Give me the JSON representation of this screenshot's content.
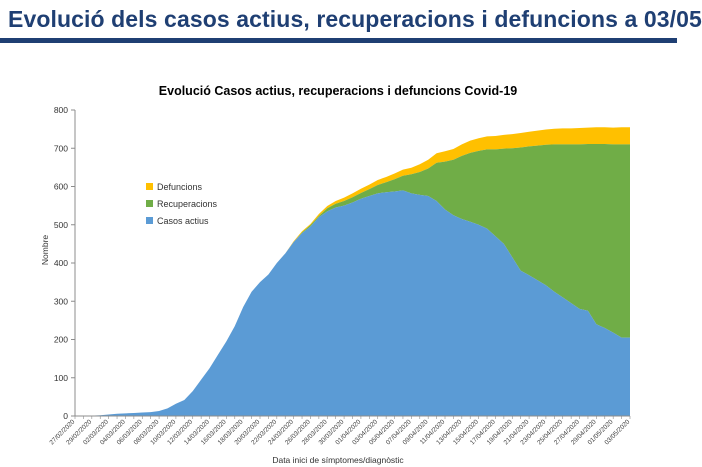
{
  "header": {
    "title": "Evolució dels casos actius, recuperacions i defuncions a 03/05"
  },
  "chart_data": {
    "type": "area",
    "stacked": true,
    "title": "Evolució Casos actius, recuperacions i defuncions Covid-19",
    "xlabel": "Data inici de símptomes/diagnòstic",
    "ylabel": "Nombre",
    "ylim": [
      0,
      800
    ],
    "yticks": [
      0,
      100,
      200,
      300,
      400,
      500,
      600,
      700,
      800
    ],
    "grid": false,
    "legend_position": "left",
    "x": [
      "27/02/2020",
      "28/02/2020",
      "29/02/2020",
      "01/03/2020",
      "02/03/2020",
      "03/03/2020",
      "04/03/2020",
      "05/03/2020",
      "06/03/2020",
      "07/03/2020",
      "08/03/2020",
      "09/03/2020",
      "10/03/2020",
      "11/03/2020",
      "12/03/2020",
      "13/03/2020",
      "14/03/2020",
      "15/03/2020",
      "16/03/2020",
      "17/03/2020",
      "18/03/2020",
      "19/03/2020",
      "20/03/2020",
      "21/03/2020",
      "22/03/2020",
      "23/03/2020",
      "24/03/2020",
      "25/03/2020",
      "26/03/2020",
      "27/03/2020",
      "28/03/2020",
      "29/03/2020",
      "30/03/2020",
      "31/03/2020",
      "01/04/2020",
      "02/04/2020",
      "03/04/2020",
      "04/04/2020",
      "05/04/2020",
      "06/04/2020",
      "07/04/2020",
      "08/04/2020",
      "09/04/2020",
      "10/04/2020",
      "11/04/2020",
      "12/04/2020",
      "13/04/2020",
      "14/04/2020",
      "15/04/2020",
      "16/04/2020",
      "17/04/2020",
      "18/04/2020",
      "19/04/2020",
      "20/04/2020",
      "21/04/2020",
      "22/04/2020",
      "23/04/2020",
      "24/04/2020",
      "25/04/2020",
      "26/04/2020",
      "27/04/2020",
      "28/04/2020",
      "29/04/2020",
      "30/04/2020",
      "01/05/2020",
      "02/05/2020",
      "03/05/2020"
    ],
    "xtick_labels": [
      "27/02/2020",
      "29/02/2020",
      "02/03/2020",
      "04/03/2020",
      "06/03/2020",
      "08/03/2020",
      "10/03/2020",
      "12/03/2020",
      "14/03/2020",
      "16/03/2020",
      "18/03/2020",
      "20/03/2020",
      "22/03/2020",
      "24/03/2020",
      "26/03/2020",
      "28/03/2020",
      "30/03/2020",
      "01/04/2020",
      "03/04/2020",
      "05/04/2020",
      "07/04/2020",
      "09/04/2020",
      "11/04/2020",
      "13/04/2020",
      "15/04/2020",
      "17/04/2020",
      "19/04/2020",
      "21/04/2020",
      "23/04/2020",
      "25/04/2020",
      "27/04/2020",
      "29/04/2020",
      "01/05/2020",
      "03/05/2020"
    ],
    "series": [
      {
        "name": "Casos actius",
        "color": "#5b9bd5",
        "values": [
          0,
          0,
          1,
          2,
          4,
          6,
          7,
          8,
          9,
          10,
          13,
          20,
          32,
          42,
          65,
          95,
          125,
          160,
          195,
          235,
          285,
          325,
          350,
          370,
          400,
          425,
          455,
          478,
          495,
          520,
          535,
          545,
          550,
          558,
          568,
          575,
          582,
          585,
          587,
          590,
          582,
          578,
          575,
          562,
          540,
          525,
          515,
          508,
          500,
          490,
          470,
          450,
          415,
          380,
          368,
          355,
          342,
          325,
          310,
          295,
          280,
          275,
          240,
          230,
          218,
          205,
          205
        ]
      },
      {
        "name": "Recuperacions",
        "color": "#70ad47",
        "values": [
          0,
          0,
          0,
          0,
          0,
          0,
          0,
          0,
          0,
          0,
          0,
          0,
          0,
          0,
          0,
          0,
          0,
          0,
          0,
          0,
          0,
          0,
          0,
          0,
          0,
          0,
          0,
          2,
          4,
          3,
          8,
          10,
          12,
          14,
          15,
          18,
          22,
          26,
          32,
          38,
          50,
          60,
          72,
          100,
          125,
          145,
          165,
          180,
          193,
          207,
          227,
          249,
          285,
          322,
          337,
          352,
          367,
          385,
          400,
          415,
          430,
          436,
          471,
          481,
          492,
          505,
          505
        ]
      },
      {
        "name": "Defuncions",
        "color": "#ffc000",
        "values": [
          0,
          0,
          0,
          0,
          0,
          0,
          0,
          0,
          0,
          0,
          0,
          0,
          0,
          0,
          0,
          0,
          0,
          0,
          0,
          0,
          0,
          0,
          0,
          0,
          0,
          0,
          2,
          3,
          3,
          5,
          6,
          7,
          9,
          10,
          11,
          12,
          13,
          14,
          15,
          16,
          17,
          20,
          23,
          25,
          27,
          28,
          30,
          32,
          33,
          34,
          35,
          36,
          37,
          38,
          38,
          39,
          40,
          41,
          42,
          42,
          43,
          43,
          44,
          44,
          44,
          45,
          45
        ]
      }
    ]
  }
}
